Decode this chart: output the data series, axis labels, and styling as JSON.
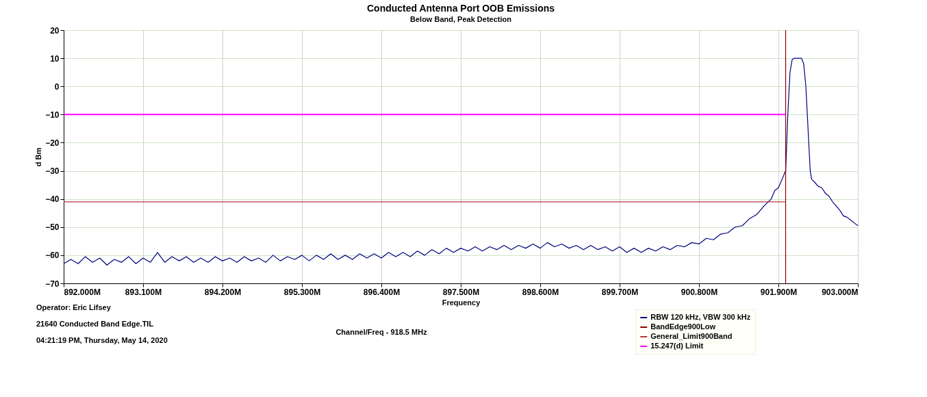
{
  "chart_data": {
    "type": "line",
    "title": "Conducted Antenna Port OOB Emissions",
    "subtitle": "Below Band, Peak Detection",
    "xlabel": "Frequency",
    "ylabel": "d Bm",
    "xlim": [
      892,
      903
    ],
    "ylim": [
      -70,
      20
    ],
    "xticks": [
      {
        "value": 892,
        "label": "892.000M"
      },
      {
        "value": 893.1,
        "label": "893.100M"
      },
      {
        "value": 894.2,
        "label": "894.200M"
      },
      {
        "value": 895.3,
        "label": "895.300M"
      },
      {
        "value": 896.4,
        "label": "896.400M"
      },
      {
        "value": 897.5,
        "label": "897.500M"
      },
      {
        "value": 898.6,
        "label": "898.600M"
      },
      {
        "value": 899.7,
        "label": "899.700M"
      },
      {
        "value": 900.8,
        "label": "900.800M"
      },
      {
        "value": 901.9,
        "label": "901.900M"
      },
      {
        "value": 903,
        "label": "903.000M"
      }
    ],
    "yticks": [
      -70,
      -60,
      -50,
      -40,
      -30,
      -20,
      -10,
      0,
      10,
      20
    ],
    "grid": true,
    "legend": "bottom right",
    "annotations": [
      "Operator: Eric Lifsey",
      "21640 Conducted Band Edge.TIL",
      "04:21:19 PM, Thursday, May 14, 2020",
      "Channel/Freq - 918.5 MHz"
    ],
    "series": [
      {
        "name": "RBW 120 kHz, VBW 300 kHz",
        "color": "#00007f",
        "x": [
          892.0,
          892.1,
          892.2,
          892.3,
          892.4,
          892.5,
          892.6,
          892.7,
          892.8,
          892.9,
          893.0,
          893.1,
          893.2,
          893.3,
          893.4,
          893.5,
          893.6,
          893.7,
          893.8,
          893.9,
          894.0,
          894.1,
          894.2,
          894.3,
          894.4,
          894.5,
          894.6,
          894.7,
          894.8,
          894.9,
          895.0,
          895.1,
          895.2,
          895.3,
          895.4,
          895.5,
          895.6,
          895.7,
          895.8,
          895.9,
          896.0,
          896.1,
          896.2,
          896.3,
          896.4,
          896.5,
          896.6,
          896.7,
          896.8,
          896.9,
          897.0,
          897.1,
          897.2,
          897.3,
          897.4,
          897.5,
          897.6,
          897.7,
          897.8,
          897.9,
          898.0,
          898.1,
          898.2,
          898.3,
          898.4,
          898.5,
          898.6,
          898.7,
          898.8,
          898.9,
          899.0,
          899.1,
          899.2,
          899.3,
          899.4,
          899.5,
          899.6,
          899.7,
          899.8,
          899.9,
          900.0,
          900.1,
          900.2,
          900.3,
          900.4,
          900.5,
          900.6,
          900.7,
          900.8,
          900.9,
          901.0,
          901.1,
          901.2,
          901.3,
          901.4,
          901.5,
          901.6,
          901.7,
          901.8,
          901.85,
          901.9,
          901.95,
          902.0,
          902.03,
          902.06,
          902.09,
          902.12,
          902.17,
          902.22,
          902.25,
          902.28,
          902.31,
          902.34,
          902.36,
          902.4,
          902.45,
          902.5,
          902.55,
          902.6,
          902.65,
          902.7,
          902.75,
          902.8,
          902.85,
          902.9,
          902.95,
          903.0
        ],
        "values": [
          -63,
          -61.5,
          -63,
          -60.5,
          -62.5,
          -61,
          -63.5,
          -61.5,
          -62.5,
          -60.5,
          -63,
          -61,
          -62.5,
          -59,
          -62.5,
          -60.5,
          -62,
          -60.5,
          -62.5,
          -61,
          -62.5,
          -60.5,
          -62,
          -61,
          -62.5,
          -60.5,
          -62,
          -61,
          -62.5,
          -60,
          -62,
          -60.5,
          -61.5,
          -60,
          -62,
          -60,
          -61.5,
          -59.5,
          -61.5,
          -60,
          -61.5,
          -59.5,
          -61,
          -59.5,
          -61,
          -59,
          -60.5,
          -59,
          -60.5,
          -58.5,
          -60,
          -58,
          -59.5,
          -57.5,
          -59,
          -57.5,
          -58.5,
          -57,
          -58.5,
          -57,
          -58,
          -56.5,
          -58,
          -56.5,
          -57.5,
          -56,
          -57.5,
          -55.5,
          -57,
          -56,
          -57.5,
          -56.5,
          -58,
          -56.5,
          -58,
          -57,
          -58.5,
          -57,
          -59,
          -57.5,
          -59,
          -57.5,
          -58.5,
          -57,
          -58,
          -56.5,
          -57,
          -55.5,
          -56,
          -54,
          -54.5,
          -52.5,
          -52,
          -50,
          -49.5,
          -47,
          -45.5,
          -42.5,
          -40,
          -37,
          -36,
          -33,
          -30,
          -10,
          5,
          9.5,
          10,
          10,
          10,
          8,
          0,
          -15,
          -30,
          -33,
          -34,
          -35.5,
          -36,
          -38,
          -39,
          -41,
          -42.5,
          -44,
          -46,
          -46.5,
          -47.5,
          -48.5,
          -49.5
        ]
      },
      {
        "name": "BandEdge900Low",
        "color": "#8b0000",
        "x": [
          902,
          902
        ],
        "values": [
          -70,
          20
        ]
      },
      {
        "name": "General_Limit900Band",
        "color": "#b03a3a",
        "x": [
          892,
          902
        ],
        "values": [
          -41,
          -41
        ]
      },
      {
        "name": "15.247(d) Limit",
        "color": "#ff00ff",
        "x": [
          892,
          902
        ],
        "values": [
          -10,
          -10
        ]
      }
    ]
  }
}
